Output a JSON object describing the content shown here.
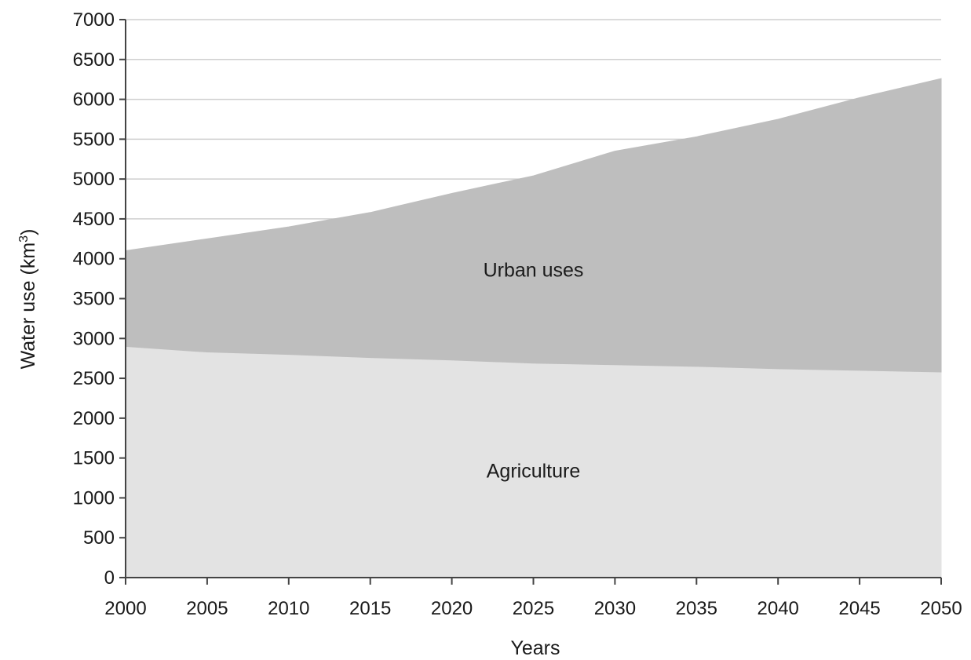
{
  "chart_data": {
    "type": "area",
    "stacked": true,
    "title": "",
    "xlabel": "Years",
    "ylabel": "Water use (km",
    "ylabel_superscript": "3",
    "ylabel_close": ")",
    "x": [
      2000,
      2005,
      2010,
      2015,
      2020,
      2025,
      2030,
      2035,
      2040,
      2045,
      2050
    ],
    "series": [
      {
        "name": "Agriculture",
        "color": "#e3e3e3",
        "values": [
          2900,
          2830,
          2800,
          2760,
          2730,
          2690,
          2670,
          2650,
          2620,
          2600,
          2580
        ]
      },
      {
        "name": "Urban uses",
        "color": "#bebebe",
        "values": [
          1200,
          1420,
          1600,
          1820,
          2090,
          2350,
          2680,
          2880,
          3130,
          3420,
          3680
        ]
      }
    ],
    "xlim": [
      2000,
      2050
    ],
    "ylim": [
      0,
      7000
    ],
    "xticks": [
      "2000",
      "2005",
      "2010",
      "2015",
      "2020",
      "2025",
      "2030",
      "2035",
      "2040",
      "2045",
      "2050"
    ],
    "yticks": [
      "0",
      "500",
      "1000",
      "1500",
      "2000",
      "2500",
      "3000",
      "3500",
      "4000",
      "4500",
      "5000",
      "5500",
      "6000",
      "6500",
      "7000"
    ],
    "grid": "horizontal",
    "legend": "inline labels"
  }
}
